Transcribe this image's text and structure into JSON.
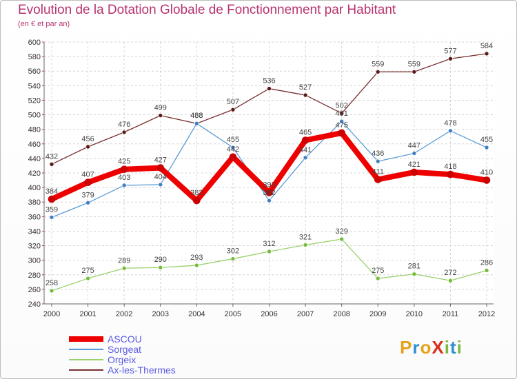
{
  "header": {
    "title": "Evolution de la Dotation Globale de Fonctionnement par Habitant",
    "subtitle": "(en € et par an)"
  },
  "logo": {
    "text": "ProXiti",
    "letters": [
      {
        "ch": "P",
        "color": "#e8a21c"
      },
      {
        "ch": "r",
        "color": "#2f8fd2"
      },
      {
        "ch": "o",
        "color": "#e8a21c"
      },
      {
        "ch": "X",
        "color": "#d9311e"
      },
      {
        "ch": "i",
        "color": "#7db942"
      },
      {
        "ch": "t",
        "color": "#2f8fd2"
      },
      {
        "ch": "i",
        "color": "#7db942"
      }
    ]
  },
  "chart_data": {
    "type": "line",
    "title": "Evolution de la Dotation Globale de Fonctionnement par Habitant",
    "subtitle": "(en € et par an)",
    "xlabel": "",
    "ylabel": "",
    "ylim": [
      240,
      600
    ],
    "ytick_step": 20,
    "grid": true,
    "legend_position": "bottom-left",
    "categories": [
      "2000",
      "2001",
      "2002",
      "2003",
      "2004",
      "2005",
      "2006",
      "2007",
      "2008",
      "2009",
      "2010",
      "2011",
      "2012"
    ],
    "series": [
      {
        "name": "ASCOU",
        "color": "#ee0000",
        "marker": "#cc0000",
        "width": 8,
        "values": [
          384,
          407,
          425,
          427,
          382,
          442,
          393,
          465,
          475,
          411,
          421,
          418,
          410
        ]
      },
      {
        "name": "Sorgeat",
        "color": "#5b9bd5",
        "marker": "#3f7fc0",
        "width": 1.3,
        "values": [
          359,
          379,
          403,
          404,
          488,
          455,
          382,
          441,
          491,
          436,
          447,
          478,
          455
        ]
      },
      {
        "name": "Orgeix",
        "color": "#99d16a",
        "marker": "#76bb3c",
        "width": 1.3,
        "values": [
          258,
          275,
          289,
          290,
          293,
          302,
          312,
          321,
          329,
          275,
          281,
          272,
          286
        ]
      },
      {
        "name": "Ax-les-Thermes",
        "color": "#7a2f2f",
        "marker": "#5a1a1a",
        "width": 1.3,
        "values": [
          432,
          456,
          476,
          499,
          488,
          507,
          536,
          527,
          502,
          559,
          559,
          577,
          584
        ]
      }
    ]
  }
}
